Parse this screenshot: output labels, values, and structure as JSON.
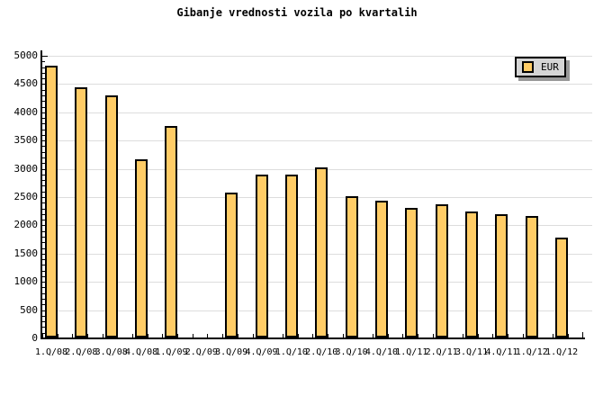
{
  "chart_data": {
    "type": "bar",
    "title": "Gibanje vrednosti vozila po kvartalih",
    "xlabel": "",
    "ylabel": "",
    "categories": [
      "1.Q/08",
      "2.Q/08",
      "3.Q/08",
      "4.Q/08",
      "1.Q/09",
      "2.Q/09",
      "3.Q/09",
      "4.Q/09",
      "1.Q/10",
      "2.Q/10",
      "3.Q/10",
      "4.Q/10",
      "1.Q/11",
      "2.Q/11",
      "3.Q/11",
      "4.Q/11",
      "1.Q/12",
      "1.Q/12"
    ],
    "series": [
      {
        "name": "EUR",
        "values": [
          4810,
          4420,
          4290,
          3160,
          3740,
          null,
          2560,
          2880,
          2880,
          3010,
          2500,
          2420,
          2290,
          2360,
          2230,
          2180,
          2150,
          1770
        ]
      }
    ],
    "ylim": [
      0,
      5000
    ],
    "ytick_major": 500,
    "ytick_minor": 100,
    "yticklabels": [
      "0",
      "500",
      "1000",
      "1500",
      "2000",
      "2500",
      "3000",
      "3500",
      "4000",
      "4500",
      "5000"
    ],
    "grid": "horizontal-major",
    "legend_position": "top-right"
  },
  "colors": {
    "background": "#FFFFFF",
    "bar_fill": "#FFCC66",
    "bar_border": "#000000",
    "grid_line": "#DDDDDD",
    "axis": "#000000",
    "text": "#000000",
    "legend_bg": "#D5D5D5",
    "legend_shadow": "#999999"
  }
}
